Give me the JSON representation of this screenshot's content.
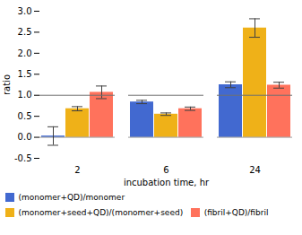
{
  "chart_data": {
    "type": "bar",
    "categories": [
      "2",
      "6",
      "24"
    ],
    "series": [
      {
        "name": "(monomer+QD)/monomer",
        "values": [
          0.03,
          0.84,
          1.25
        ],
        "errors": [
          0.22,
          0.04,
          0.07
        ]
      },
      {
        "name": "(monomer+seed+QD)/(monomer+seed)",
        "values": [
          0.68,
          0.55,
          2.6
        ],
        "errors": [
          0.05,
          0.03,
          0.22
        ]
      },
      {
        "name": "(fibril+QD)/fibril",
        "values": [
          1.07,
          0.68,
          1.24
        ],
        "errors": [
          0.15,
          0.04,
          0.07
        ]
      }
    ],
    "hline": 1.0,
    "ylabel": "ratio",
    "xlabel": "incubation time, hr",
    "ylim": [
      -0.5,
      3.0
    ],
    "yticks": [
      -0.5,
      {
        "value": 0.0,
        "label": "0.0"
      },
      0.5,
      {
        "value": 1.0,
        "label": "1.0"
      },
      1.5,
      {
        "value": 2.0,
        "label": "2.0"
      },
      2.5,
      {
        "value": 3.0,
        "label": "3.0"
      }
    ],
    "grid": false,
    "legend": "bottom"
  }
}
